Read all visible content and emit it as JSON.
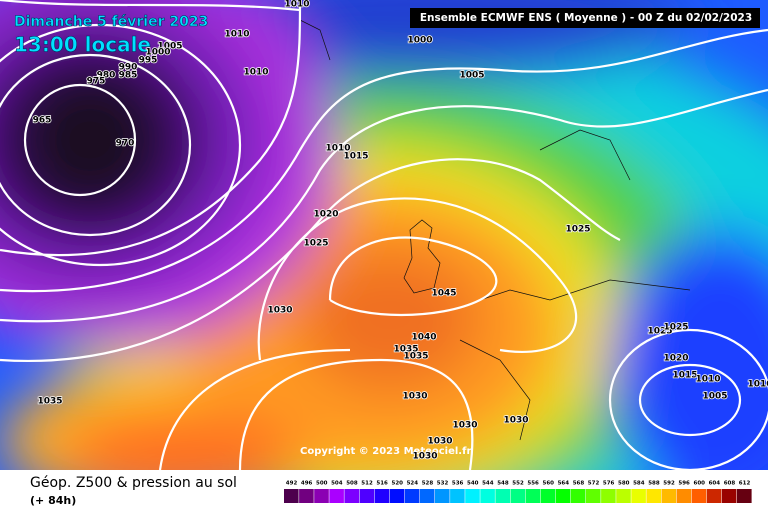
{
  "header": {
    "date": "Dimanche 5 février 2023",
    "time": "13:00 locale",
    "model": "Ensemble ECMWF ENS  ( Moyenne )  -  00 Z du 02/02/2023"
  },
  "copyright": "Copyright © 2023 Meteociel.fr",
  "legend": {
    "title": "Géop. Z500 & pression au sol",
    "lead": "(+ 84h)",
    "ticks": [
      492,
      496,
      500,
      504,
      508,
      512,
      516,
      520,
      524,
      528,
      532,
      536,
      540,
      544,
      548,
      552,
      556,
      560,
      564,
      568,
      572,
      576,
      580,
      584,
      588,
      592,
      596,
      600,
      604,
      608,
      612
    ]
  },
  "isobar_labels": [
    1010,
    1010,
    1005,
    1000,
    995,
    990,
    985,
    980,
    975,
    965,
    970,
    1010,
    1000,
    1005,
    1010,
    1015,
    1020,
    1025,
    1025,
    1030,
    1045,
    1040,
    1035,
    1035,
    1030,
    1030,
    1030,
    1030,
    1030,
    1035,
    1025,
    1025,
    1020,
    1015,
    1010,
    1005,
    1010
  ]
}
